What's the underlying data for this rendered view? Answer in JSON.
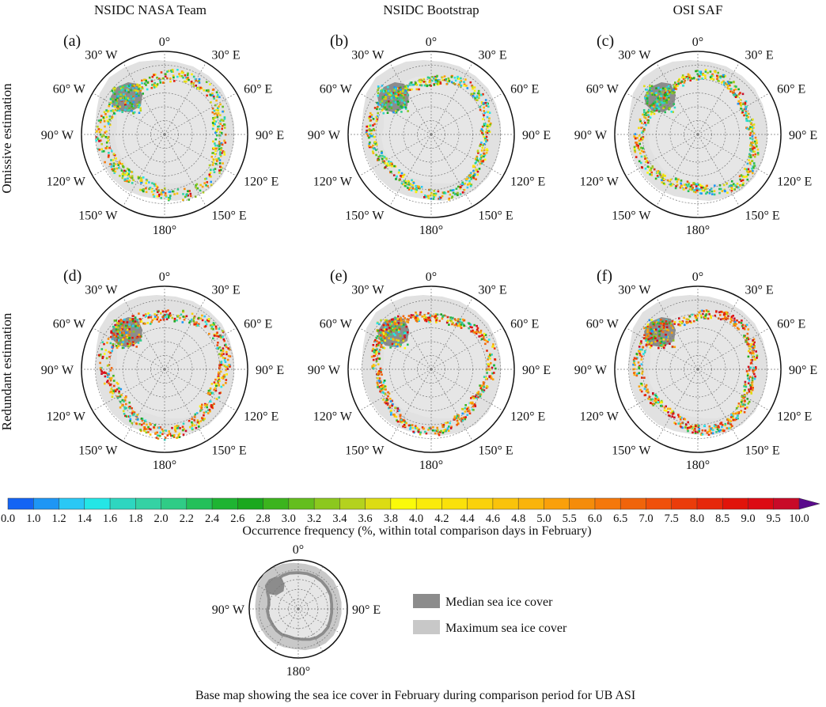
{
  "columns": [
    "NSIDC NASA Team",
    "NSIDC Bootstrap",
    "OSI SAF"
  ],
  "rows": [
    "Omissive estimation",
    "Redundant estimation"
  ],
  "panels": [
    {
      "tag": "(a)",
      "seed": 11
    },
    {
      "tag": "(b)",
      "seed": 23
    },
    {
      "tag": "(c)",
      "seed": 37
    },
    {
      "tag": "(d)",
      "seed": 41
    },
    {
      "tag": "(e)",
      "seed": 53
    },
    {
      "tag": "(f)",
      "seed": 67
    }
  ],
  "polar_labels": {
    "top": "0°",
    "bottom": "180°",
    "left": [
      "30° W",
      "60° W",
      "90° W",
      "120° W",
      "150° W"
    ],
    "right": [
      "30° E",
      "60° E",
      "90° E",
      "120° E",
      "150° E"
    ]
  },
  "colorbar": {
    "ticks": [
      "0.0",
      "1.0",
      "1.2",
      "1.4",
      "1.6",
      "1.8",
      "2.0",
      "2.2",
      "2.4",
      "2.6",
      "2.8",
      "3.0",
      "3.2",
      "3.4",
      "3.6",
      "3.8",
      "4.0",
      "4.2",
      "4.4",
      "4.6",
      "4.8",
      "5.0",
      "5.5",
      "6.0",
      "6.5",
      "7.0",
      "7.5",
      "8.0",
      "8.5",
      "9.0",
      "9.5",
      "10.0"
    ],
    "colors": [
      "#1464f4",
      "#1e96f5",
      "#2ac8f5",
      "#24e6e6",
      "#2ed6c0",
      "#34d2a4",
      "#2fcc86",
      "#24c05a",
      "#1eb432",
      "#1aa81e",
      "#3cb41e",
      "#64be1e",
      "#8cc81e",
      "#b4d21e",
      "#dcdc14",
      "#fafa0a",
      "#faeb0a",
      "#fae10a",
      "#fad20a",
      "#fac30a",
      "#fab40a",
      "#faa00a",
      "#f58c0a",
      "#f5780a",
      "#f0640a",
      "#f0500a",
      "#eb3c0a",
      "#e6280a",
      "#e1140a",
      "#dc0a14",
      "#c80a28"
    ],
    "extend_color": "#5a0a8c",
    "label": "Occurrence frequency (%, within total comparison days in February)"
  },
  "legend": {
    "median_label": "Median sea ice cover",
    "maximum_label": "Maximum sea ice cover",
    "median_color": "#8c8c8c",
    "maximum_color": "#c8c8c8"
  },
  "basemap": {
    "top": "0°",
    "bottom": "180°",
    "left": "90° W",
    "right": "90° E",
    "caption": "Base map showing the sea ice cover in February during comparison period for UB ASI"
  }
}
